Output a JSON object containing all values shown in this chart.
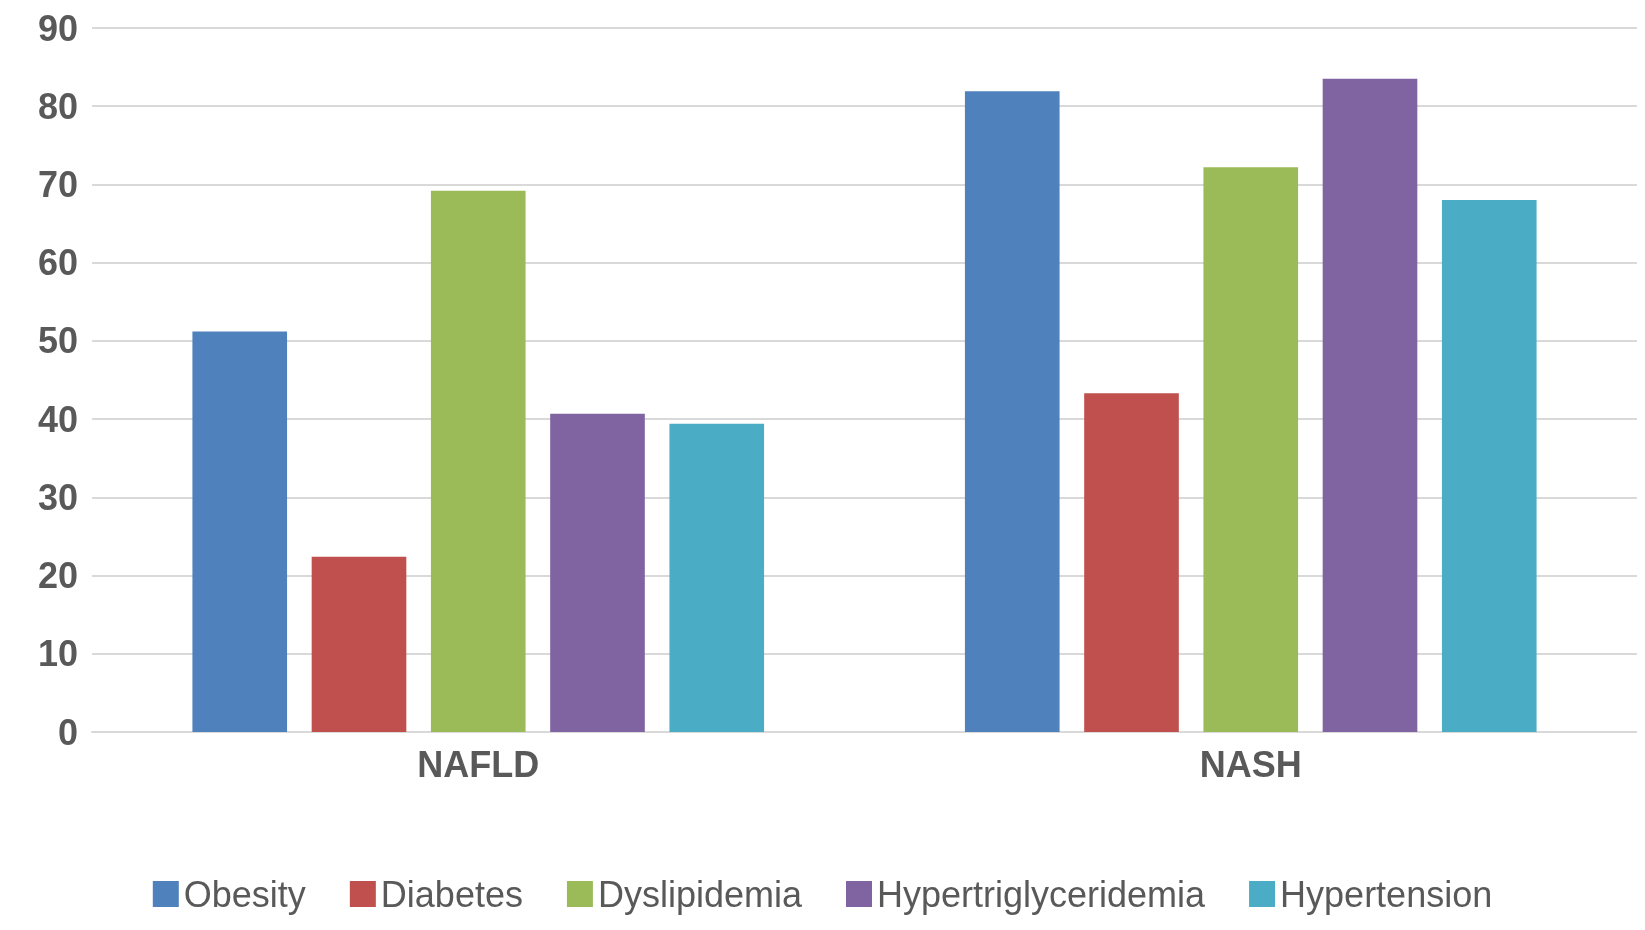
{
  "chart_data": {
    "type": "bar",
    "categories": [
      "NAFLD",
      "NASH"
    ],
    "series": [
      {
        "name": "Obesity",
        "color": "#4f81bd",
        "values": [
          51.2,
          81.9
        ]
      },
      {
        "name": "Diabetes",
        "color": "#c0504d",
        "values": [
          22.4,
          43.3
        ]
      },
      {
        "name": "Dyslipidemia",
        "color": "#9bbb59",
        "values": [
          69.2,
          72.2
        ]
      },
      {
        "name": "Hypertriglyceridemia",
        "color": "#8064a2",
        "values": [
          40.7,
          83.5
        ]
      },
      {
        "name": "Hypertension",
        "color": "#4bacc6",
        "values": [
          39.4,
          68.0
        ]
      }
    ],
    "ylim": [
      0,
      90
    ],
    "yticks": [
      0,
      10,
      20,
      30,
      40,
      50,
      60,
      70,
      80,
      90
    ],
    "grid": "y",
    "legend": "bottom"
  }
}
